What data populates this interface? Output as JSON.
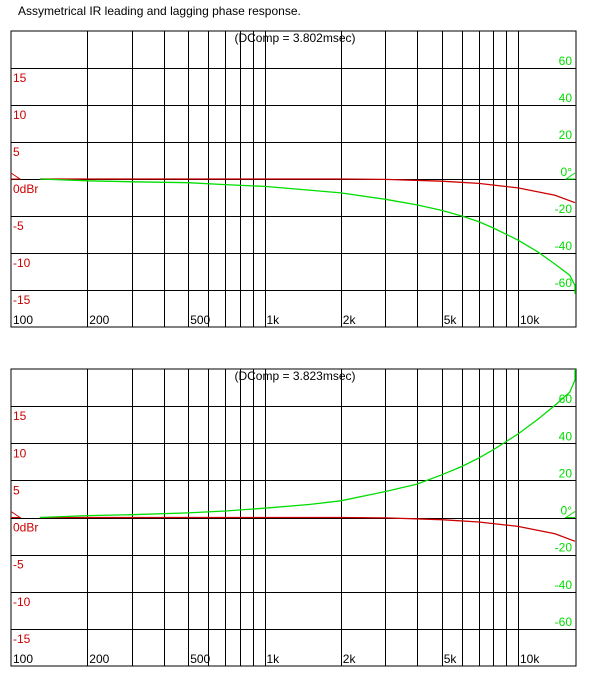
{
  "title": "Assymetrical IR leading and lagging phase response.",
  "colors": {
    "magnitude": "#cc0000",
    "phase": "#00dd00",
    "grid": "#000000",
    "background": "#ffffff"
  },
  "x_tick_labels": [
    "100",
    "200",
    "500",
    "1k",
    "2k",
    "5k",
    "10k"
  ],
  "left_axis_labels": [
    "15",
    "10",
    "5",
    "0dBr",
    "-5",
    "-10",
    "-15"
  ],
  "right_axis_labels": [
    "60",
    "40",
    "20",
    "0°",
    "-20",
    "-40",
    "-60"
  ],
  "chart_data": [
    {
      "type": "line",
      "annotation": "(DComp = 3.802msec)",
      "xscale": "log",
      "xlim": [
        100,
        20000
      ],
      "ylim_left": [
        -20,
        20
      ],
      "ylim_right": [
        -80,
        80
      ],
      "x_tick_labels": [
        "100",
        "200",
        "500",
        "1k",
        "2k",
        "5k",
        "10k"
      ],
      "series": [
        {
          "axis": "left",
          "color": "#cc0000",
          "x": [
            130,
            200,
            500,
            1000,
            2000,
            3000,
            5000,
            7000,
            10000,
            14000,
            20000
          ],
          "y": [
            0,
            0,
            0,
            0,
            0,
            -0.05,
            -0.3,
            -0.6,
            -1.2,
            -2.2,
            -3.2
          ]
        },
        {
          "axis": "right",
          "color": "#00dd00",
          "x": [
            130,
            200,
            300,
            500,
            700,
            1000,
            1500,
            2000,
            3000,
            4000,
            5000,
            6000,
            7000,
            8000,
            10000,
            12000,
            14000,
            16000,
            18000,
            20000
          ],
          "y": [
            0,
            -1,
            -1.5,
            -2,
            -3,
            -4,
            -6,
            -7.5,
            -11,
            -14,
            -17,
            -20,
            -23,
            -26.5,
            -33,
            -39.5,
            -46,
            -52,
            -57.5,
            -62
          ]
        }
      ]
    },
    {
      "type": "line",
      "annotation": "(DComp = 3.823msec)",
      "xscale": "log",
      "xlim": [
        100,
        20000
      ],
      "ylim_left": [
        -20,
        20
      ],
      "ylim_right": [
        -80,
        80
      ],
      "x_tick_labels": [
        "100",
        "200",
        "500",
        "1k",
        "2k",
        "5k",
        "10k"
      ],
      "series": [
        {
          "axis": "left",
          "color": "#cc0000",
          "x": [
            130,
            200,
            500,
            1000,
            2000,
            3000,
            5000,
            7000,
            10000,
            14000,
            20000
          ],
          "y": [
            0,
            0,
            0,
            0,
            0,
            -0.05,
            -0.3,
            -0.6,
            -1.2,
            -2.2,
            -3.2
          ]
        },
        {
          "axis": "right",
          "color": "#00dd00",
          "x": [
            130,
            200,
            300,
            500,
            700,
            1000,
            1500,
            2000,
            3000,
            4000,
            5000,
            6000,
            7000,
            8000,
            10000,
            12000,
            14000,
            16000,
            18000,
            20000
          ],
          "y": [
            0,
            1,
            1.5,
            2.5,
            3.5,
            5,
            7,
            9,
            14,
            18,
            23,
            27.5,
            32,
            36.5,
            45,
            53,
            60.5,
            67.5,
            74,
            80
          ]
        }
      ]
    }
  ]
}
